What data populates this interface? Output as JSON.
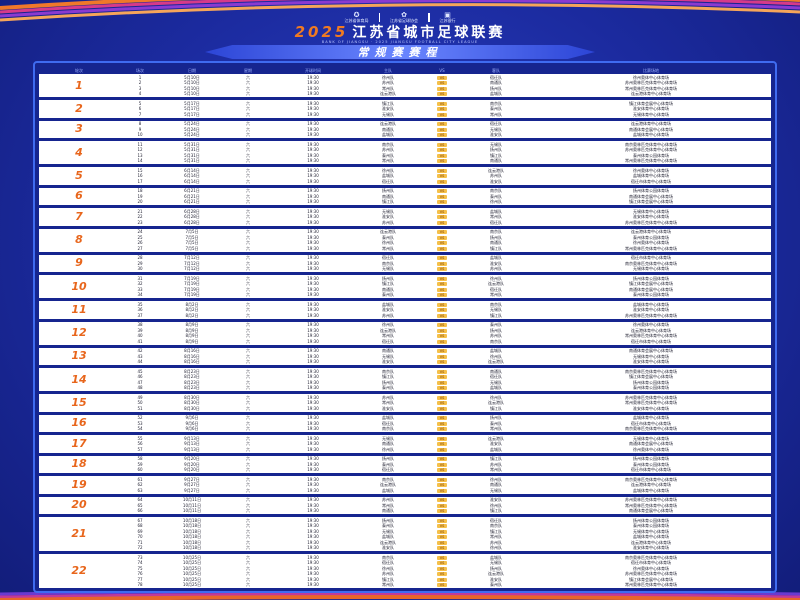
{
  "header": {
    "logos": [
      {
        "icon": "sport-icon",
        "label": "江苏省体育局"
      },
      {
        "icon": "emblem-icon",
        "label": "江苏省足球协会"
      },
      {
        "icon": "bank-icon",
        "label": "江苏银行"
      }
    ],
    "year": "2025",
    "title": "江苏省城市足球联赛",
    "subtitle": "BANK OF JIANGSU · 2025 JIANGSU FOOTBALL CITY LEAGUE",
    "banner": "常规赛赛程"
  },
  "columns": [
    "轮次",
    "场次",
    "日期",
    "星期",
    "开球时间",
    "主队",
    "VS",
    "客队",
    "比赛场地"
  ],
  "vs_label": "VS",
  "colors": {
    "background": "#1b2a9e",
    "round_number": "#e8661c",
    "vs_badge": "#f5c04a",
    "frame": "#3f6bf0"
  },
  "rounds": [
    {
      "round": "1",
      "matches": [
        [
          "1",
          "5月10日",
          "六",
          "19:30",
          "徐州队",
          "宿迁队",
          "徐州奥体中心体育场"
        ],
        [
          "2",
          "5月10日",
          "六",
          "19:30",
          "苏州队",
          "南通队",
          "苏州奥林匹克体育中心体育场"
        ],
        [
          "3",
          "5月10日",
          "六",
          "19:30",
          "常州队",
          "扬州队",
          "常州奥林匹克体育中心体育场"
        ],
        [
          "4",
          "5月10日",
          "六",
          "19:30",
          "连云港队",
          "盐城队",
          "连云港体育中心体育场"
        ]
      ]
    },
    {
      "round": "2",
      "matches": [
        [
          "5",
          "5月17日",
          "六",
          "19:30",
          "镇江队",
          "南京队",
          "镇江体育会展中心体育场"
        ],
        [
          "6",
          "5月17日",
          "六",
          "19:30",
          "淮安队",
          "泰州队",
          "淮安体育中心体育场"
        ],
        [
          "7",
          "5月17日",
          "六",
          "19:30",
          "无锡队",
          "常州队",
          "无锡体育中心体育场"
        ]
      ]
    },
    {
      "round": "3",
      "matches": [
        [
          "8",
          "5月24日",
          "六",
          "19:30",
          "连云港队",
          "宿迁队",
          "连云港体育中心体育场"
        ],
        [
          "9",
          "5月24日",
          "六",
          "19:30",
          "南通队",
          "无锡队",
          "南通体育会展中心体育场"
        ],
        [
          "10",
          "5月24日",
          "六",
          "19:30",
          "盐城队",
          "淮安队",
          "盐城体育中心体育场"
        ]
      ]
    },
    {
      "round": "4",
      "matches": [
        [
          "11",
          "5月31日",
          "六",
          "19:30",
          "南京队",
          "无锡队",
          "南京奥林匹克体育中心体育场"
        ],
        [
          "12",
          "5月31日",
          "六",
          "19:30",
          "苏州队",
          "扬州队",
          "苏州奥林匹克体育中心体育场"
        ],
        [
          "13",
          "5月31日",
          "六",
          "19:30",
          "泰州队",
          "镇江队",
          "泰州体育公园体育场"
        ],
        [
          "14",
          "5月31日",
          "六",
          "19:30",
          "常州队",
          "南通队",
          "常州奥林匹克体育中心体育场"
        ]
      ]
    },
    {
      "round": "5",
      "matches": [
        [
          "15",
          "6月14日",
          "六",
          "19:30",
          "徐州队",
          "连云港队",
          "徐州奥体中心体育场"
        ],
        [
          "16",
          "6月14日",
          "六",
          "19:30",
          "盐城队",
          "苏州队",
          "盐城体育中心体育场"
        ],
        [
          "17",
          "6月14日",
          "六",
          "19:30",
          "宿迁队",
          "淮安队",
          "宿迁市体育中心体育场"
        ]
      ]
    },
    {
      "round": "6",
      "matches": [
        [
          "18",
          "6月21日",
          "六",
          "19:30",
          "扬州队",
          "南京队",
          "扬州体育公园体育场"
        ],
        [
          "19",
          "6月21日",
          "六",
          "19:30",
          "南通队",
          "泰州队",
          "南通体育会展中心体育场"
        ],
        [
          "20",
          "6月21日",
          "六",
          "19:30",
          "镇江队",
          "徐州队",
          "镇江体育会展中心体育场"
        ]
      ]
    },
    {
      "round": "7",
      "matches": [
        [
          "21",
          "6月28日",
          "六",
          "19:30",
          "无锡队",
          "盐城队",
          "无锡体育中心体育场"
        ],
        [
          "22",
          "6月28日",
          "六",
          "19:30",
          "淮安队",
          "常州队",
          "淮安体育中心体育场"
        ],
        [
          "23",
          "6月28日",
          "六",
          "19:30",
          "苏州队",
          "宿迁队",
          "苏州奥林匹克体育中心体育场"
        ]
      ]
    },
    {
      "round": "8",
      "matches": [
        [
          "24",
          "7月5日",
          "六",
          "19:30",
          "连云港队",
          "南京队",
          "连云港体育中心体育场"
        ],
        [
          "25",
          "7月5日",
          "六",
          "19:30",
          "泰州队",
          "扬州队",
          "泰州体育公园体育场"
        ],
        [
          "26",
          "7月5日",
          "六",
          "19:30",
          "徐州队",
          "南通队",
          "徐州奥体中心体育场"
        ],
        [
          "27",
          "7月5日",
          "六",
          "19:30",
          "常州队",
          "镇江队",
          "常州奥林匹克体育中心体育场"
        ]
      ]
    },
    {
      "round": "9",
      "matches": [
        [
          "28",
          "7月12日",
          "六",
          "19:30",
          "宿迁队",
          "盐城队",
          "宿迁市体育中心体育场"
        ],
        [
          "29",
          "7月12日",
          "六",
          "19:30",
          "南京队",
          "淮安队",
          "南京奥林匹克体育中心体育场"
        ],
        [
          "30",
          "7月12日",
          "六",
          "19:30",
          "无锡队",
          "苏州队",
          "无锡体育中心体育场"
        ]
      ]
    },
    {
      "round": "10",
      "matches": [
        [
          "31",
          "7月19日",
          "六",
          "19:30",
          "扬州队",
          "徐州队",
          "扬州体育公园体育场"
        ],
        [
          "32",
          "7月19日",
          "六",
          "19:30",
          "镇江队",
          "连云港队",
          "镇江体育会展中心体育场"
        ],
        [
          "33",
          "7月19日",
          "六",
          "19:30",
          "南通队",
          "宿迁队",
          "南通体育会展中心体育场"
        ],
        [
          "34",
          "7月19日",
          "六",
          "19:30",
          "泰州队",
          "常州队",
          "泰州体育公园体育场"
        ]
      ]
    },
    {
      "round": "11",
      "matches": [
        [
          "35",
          "8月2日",
          "六",
          "19:30",
          "盐城队",
          "南京队",
          "盐城体育中心体育场"
        ],
        [
          "36",
          "8月2日",
          "六",
          "19:30",
          "淮安队",
          "无锡队",
          "淮安体育中心体育场"
        ],
        [
          "37",
          "8月2日",
          "六",
          "19:30",
          "苏州队",
          "镇江队",
          "苏州奥林匹克体育中心体育场"
        ]
      ]
    },
    {
      "round": "12",
      "matches": [
        [
          "38",
          "8月9日",
          "六",
          "19:30",
          "徐州队",
          "泰州队",
          "徐州奥体中心体育场"
        ],
        [
          "39",
          "8月9日",
          "六",
          "19:30",
          "连云港队",
          "扬州队",
          "连云港体育中心体育场"
        ],
        [
          "40",
          "8月9日",
          "六",
          "19:30",
          "常州队",
          "苏州队",
          "常州奥林匹克体育中心体育场"
        ],
        [
          "41",
          "8月9日",
          "六",
          "19:30",
          "宿迁队",
          "南京队",
          "宿迁市体育中心体育场"
        ]
      ]
    },
    {
      "round": "13",
      "matches": [
        [
          "42",
          "8月16日",
          "六",
          "19:30",
          "南通队",
          "盐城队",
          "南通体育会展中心体育场"
        ],
        [
          "43",
          "8月16日",
          "六",
          "19:30",
          "无锡队",
          "徐州队",
          "无锡体育中心体育场"
        ],
        [
          "44",
          "8月16日",
          "六",
          "19:30",
          "淮安队",
          "连云港队",
          "淮安体育中心体育场"
        ]
      ]
    },
    {
      "round": "14",
      "matches": [
        [
          "45",
          "8月23日",
          "六",
          "19:30",
          "南京队",
          "南通队",
          "南京奥林匹克体育中心体育场"
        ],
        [
          "46",
          "8月23日",
          "六",
          "19:30",
          "镇江队",
          "宿迁队",
          "镇江体育会展中心体育场"
        ],
        [
          "47",
          "8月23日",
          "六",
          "19:30",
          "扬州队",
          "无锡队",
          "扬州体育公园体育场"
        ],
        [
          "48",
          "8月23日",
          "六",
          "19:30",
          "泰州队",
          "盐城队",
          "泰州体育公园体育场"
        ]
      ]
    },
    {
      "round": "15",
      "matches": [
        [
          "49",
          "8月30日",
          "六",
          "19:30",
          "苏州队",
          "徐州队",
          "苏州奥林匹克体育中心体育场"
        ],
        [
          "50",
          "8月30日",
          "六",
          "19:30",
          "常州队",
          "连云港队",
          "常州奥林匹克体育中心体育场"
        ],
        [
          "51",
          "8月30日",
          "六",
          "19:30",
          "淮安队",
          "镇江队",
          "淮安体育中心体育场"
        ]
      ]
    },
    {
      "round": "16",
      "matches": [
        [
          "52",
          "9月6日",
          "六",
          "19:30",
          "盐城队",
          "扬州队",
          "盐城体育中心体育场"
        ],
        [
          "53",
          "9月6日",
          "六",
          "19:30",
          "宿迁队",
          "泰州队",
          "宿迁市体育中心体育场"
        ],
        [
          "54",
          "9月6日",
          "六",
          "19:30",
          "南京队",
          "常州队",
          "南京奥林匹克体育中心体育场"
        ]
      ]
    },
    {
      "round": "17",
      "matches": [
        [
          "55",
          "9月13日",
          "六",
          "19:30",
          "无锡队",
          "连云港队",
          "无锡体育中心体育场"
        ],
        [
          "56",
          "9月13日",
          "六",
          "19:30",
          "南通队",
          "淮安队",
          "南通体育会展中心体育场"
        ],
        [
          "57",
          "9月13日",
          "六",
          "19:30",
          "徐州队",
          "盐城队",
          "徐州奥体中心体育场"
        ]
      ]
    },
    {
      "round": "18",
      "matches": [
        [
          "58",
          "9月20日",
          "六",
          "19:30",
          "扬州队",
          "镇江队",
          "扬州体育公园体育场"
        ],
        [
          "59",
          "9月20日",
          "六",
          "19:30",
          "泰州队",
          "苏州队",
          "泰州体育公园体育场"
        ],
        [
          "60",
          "9月20日",
          "六",
          "19:30",
          "宿迁队",
          "常州队",
          "宿迁市体育中心体育场"
        ]
      ]
    },
    {
      "round": "19",
      "matches": [
        [
          "61",
          "9月27日",
          "六",
          "19:30",
          "南京队",
          "徐州队",
          "南京奥林匹克体育中心体育场"
        ],
        [
          "62",
          "9月27日",
          "六",
          "19:30",
          "连云港队",
          "南通队",
          "连云港体育中心体育场"
        ],
        [
          "63",
          "9月27日",
          "六",
          "19:30",
          "盐城队",
          "无锡队",
          "盐城体育中心体育场"
        ]
      ]
    },
    {
      "round": "20",
      "matches": [
        [
          "64",
          "10月11日",
          "六",
          "19:30",
          "苏州队",
          "淮安队",
          "苏州奥林匹克体育中心体育场"
        ],
        [
          "65",
          "10月11日",
          "六",
          "19:30",
          "常州队",
          "徐州队",
          "常州奥林匹克体育中心体育场"
        ],
        [
          "66",
          "10月11日",
          "六",
          "19:30",
          "南通队",
          "镇江队",
          "南通体育会展中心体育场"
        ]
      ]
    },
    {
      "round": "21",
      "matches": [
        [
          "67",
          "10月18日",
          "六",
          "19:30",
          "扬州队",
          "宿迁队",
          "扬州体育公园体育场"
        ],
        [
          "68",
          "10月18日",
          "六",
          "19:30",
          "泰州队",
          "南京队",
          "泰州体育公园体育场"
        ],
        [
          "69",
          "10月18日",
          "六",
          "19:30",
          "无锡队",
          "镇江队",
          "无锡体育中心体育场"
        ],
        [
          "70",
          "10月18日",
          "六",
          "19:30",
          "盐城队",
          "常州队",
          "盐城体育中心体育场"
        ],
        [
          "71",
          "10月18日",
          "六",
          "19:30",
          "连云港队",
          "苏州队",
          "连云港体育中心体育场"
        ],
        [
          "72",
          "10月18日",
          "六",
          "19:30",
          "淮安队",
          "徐州队",
          "淮安体育中心体育场"
        ]
      ]
    },
    {
      "round": "22",
      "matches": [
        [
          "73",
          "10月25日",
          "六",
          "19:30",
          "南京队",
          "盐城队",
          "南京奥林匹克体育中心体育场"
        ],
        [
          "74",
          "10月25日",
          "六",
          "19:30",
          "宿迁队",
          "无锡队",
          "宿迁市体育中心体育场"
        ],
        [
          "75",
          "10月25日",
          "六",
          "19:30",
          "徐州队",
          "扬州队",
          "徐州奥体中心体育场"
        ],
        [
          "76",
          "10月25日",
          "六",
          "19:30",
          "苏州队",
          "连云港队",
          "苏州奥林匹克体育中心体育场"
        ],
        [
          "77",
          "10月25日",
          "六",
          "19:30",
          "镇江队",
          "淮安队",
          "镇江体育会展中心体育场"
        ],
        [
          "78",
          "10月25日",
          "六",
          "19:30",
          "常州队",
          "泰州队",
          "常州奥林匹克体育中心体育场"
        ]
      ]
    }
  ]
}
